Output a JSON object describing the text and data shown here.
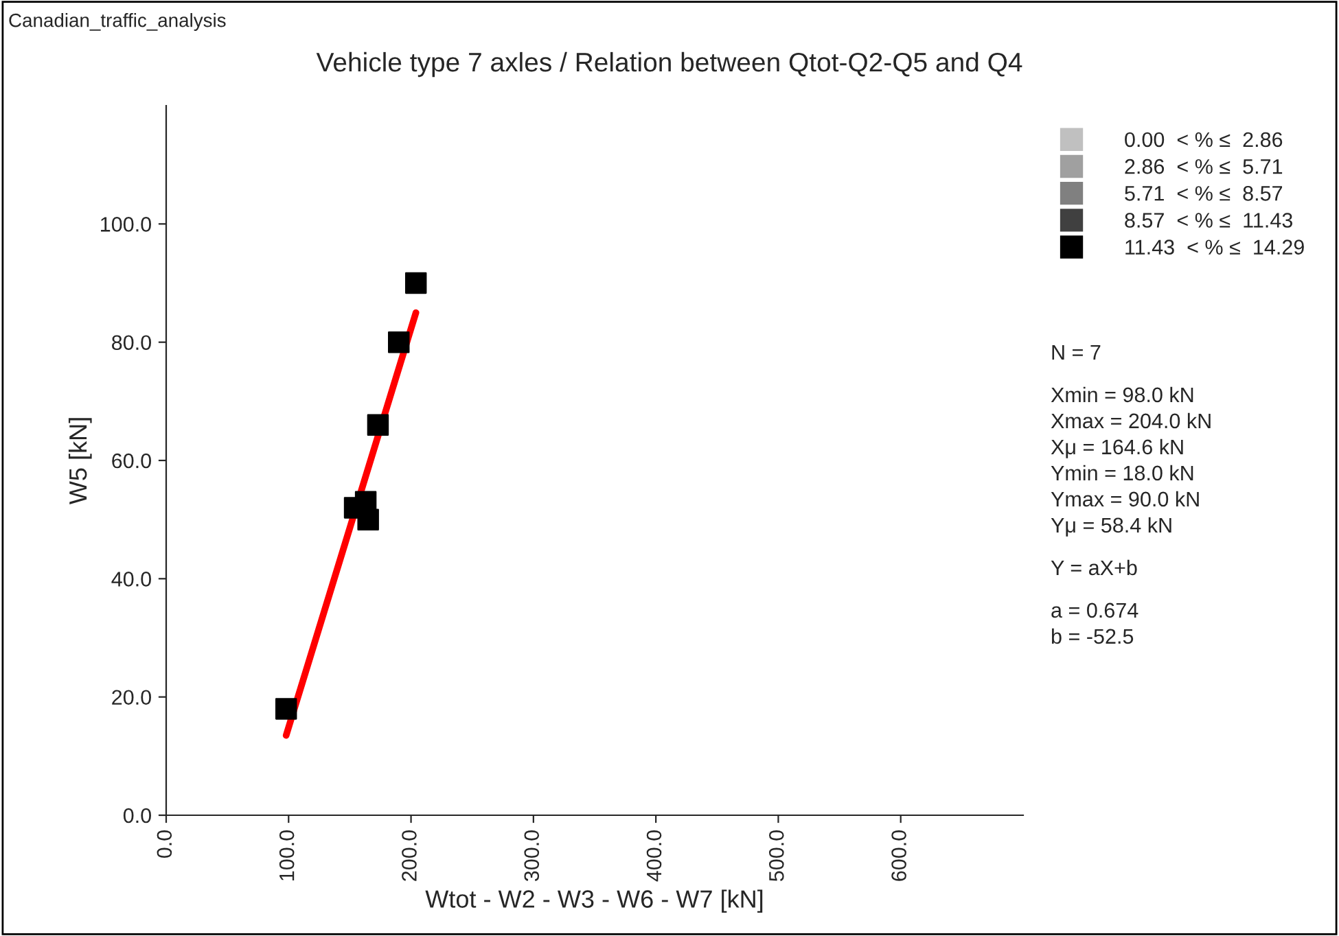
{
  "chart_data": {
    "type": "scatter",
    "title": "Vehicle type 7 axles / Relation between Qtot-Q2-Q5 and Q4",
    "xlabel": "Wtot - W2 - W3 - W6 - W7 [kN]",
    "ylabel": "W5 [kN]",
    "xlim": [
      0,
      700
    ],
    "xticks": [
      {
        "value": 0,
        "label": "0.0"
      },
      {
        "value": 100,
        "label": "100.0"
      },
      {
        "value": 200,
        "label": "200.0"
      },
      {
        "value": 300,
        "label": "300.0"
      },
      {
        "value": 400,
        "label": "400.0"
      },
      {
        "value": 500,
        "label": "500.0"
      },
      {
        "value": 600,
        "label": "600.0"
      }
    ],
    "ylim": [
      0,
      120
    ],
    "yticks": [
      {
        "value": 0,
        "label": "0.0"
      },
      {
        "value": 20,
        "label": "20.0"
      },
      {
        "value": 40,
        "label": "40.0"
      },
      {
        "value": 60,
        "label": "60.0"
      },
      {
        "value": 80,
        "label": "80.0"
      },
      {
        "value": 100,
        "label": "100.0"
      }
    ],
    "marker": "square",
    "grid": false,
    "legend": "right",
    "series": [
      {
        "name": "0.00  < % ≤  2.86",
        "color": "#c0c0c0"
      },
      {
        "name": "2.86  < % ≤  5.71",
        "color": "#a0a0a0"
      },
      {
        "name": "5.71  < % ≤  8.57",
        "color": "#808080"
      },
      {
        "name": "8.57  < % ≤  11.43",
        "color": "#404040"
      },
      {
        "name": "11.43  < % ≤  14.29",
        "color": "#000000",
        "x": [
          98,
          154,
          163,
          165,
          173,
          190,
          204
        ],
        "values": [
          18,
          52,
          53,
          50,
          66,
          80,
          90
        ]
      },
      {
        "type": "line",
        "marker": "none",
        "color": "#ff0000",
        "x": [
          98,
          204
        ],
        "values": [
          13.5,
          85.0
        ]
      }
    ],
    "annotations": [
      "Canadian_traffic_analysis",
      "N = 7",
      "Xmin = 98.0 kN",
      "Xmax = 204.0 kN",
      "Xμ = 164.6 kN",
      "Ymin = 18.0 kN",
      "Ymax = 90.0 kN",
      "Yμ = 58.4 kN",
      "Y = aX+b",
      "a = 0.674",
      "b = -52.5"
    ]
  }
}
